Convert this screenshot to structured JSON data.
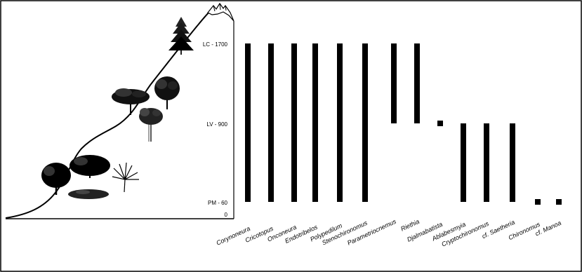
{
  "chart_data": {
    "type": "bar",
    "y_levels": [
      {
        "label": "LC - 1700",
        "value": 1700
      },
      {
        "label": "LV - 900",
        "value": 900
      },
      {
        "label": "PM - 60",
        "value": 60
      },
      {
        "label": "0",
        "value": 0
      }
    ],
    "taxa": [
      {
        "name": "Corynoneura",
        "from": 60,
        "to": 1700
      },
      {
        "name": "Cricotopus",
        "from": 60,
        "to": 1700
      },
      {
        "name": "Onconeura",
        "from": 60,
        "to": 1700
      },
      {
        "name": "Endotribelos",
        "from": 60,
        "to": 1700
      },
      {
        "name": "Polypedilum",
        "from": 60,
        "to": 1700
      },
      {
        "name": "Stenochironomus",
        "from": 60,
        "to": 1700
      },
      {
        "name": "Parametriocnemus",
        "from": 900,
        "to": 1700
      },
      {
        "name": "Riethia",
        "from": 900,
        "to": 1700
      },
      {
        "name": "Djalmabatista",
        "from": 900,
        "to": 900
      },
      {
        "name": "Ablabesmyia",
        "from": 60,
        "to": 900
      },
      {
        "name": "Cryptochironomus",
        "from": 60,
        "to": 900
      },
      {
        "name": "cf. Saetheria",
        "from": 60,
        "to": 900
      },
      {
        "name": "Chironomus",
        "from": 60,
        "to": 60
      },
      {
        "name": "cf. Manoa",
        "from": 60,
        "to": 60
      }
    ],
    "colors": {
      "bars": "#000000",
      "text": "#000000",
      "frame": "#000000"
    },
    "illustration": {
      "elevation_profile": "curve-line",
      "icons": [
        "mountain-peak-icon",
        "conifer-tree-icon",
        "broadleaf-tree-icon",
        "umbrella-tree-icon",
        "tall-tree-icon",
        "round-tree-icon",
        "wide-shrub-icon",
        "palm-shrub-icon",
        "low-shrub-icon"
      ]
    }
  }
}
